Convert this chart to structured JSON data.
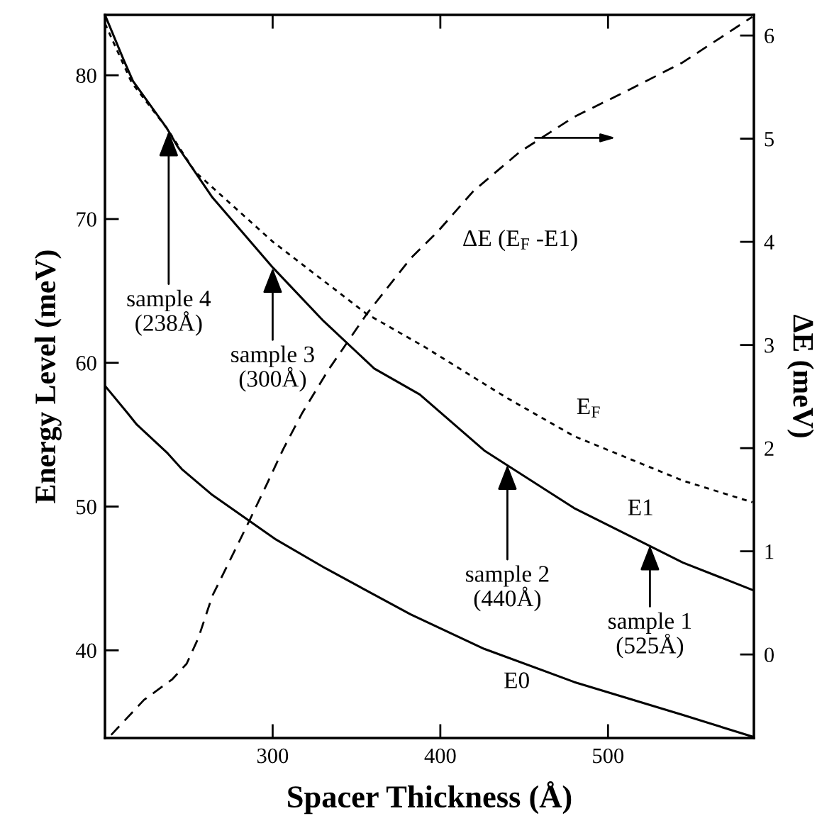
{
  "chart_data": {
    "type": "line",
    "xlabel": "Spacer Thickness (Å)",
    "ylabel": "Energy Level (meV)",
    "y2label": "ΔE (meV)",
    "xlim": [
      200,
      587
    ],
    "xticks": [
      300,
      400,
      500
    ],
    "ylim": [
      33.9,
      84.2
    ],
    "yticks": [
      40,
      50,
      60,
      70,
      80
    ],
    "y2lim": [
      -0.81,
      6.2
    ],
    "y2ticks": [
      0,
      1,
      2,
      3,
      4,
      5,
      6
    ],
    "grid": false,
    "legend": false,
    "marker": "none",
    "series": [
      {
        "name": "E1",
        "color": "#000000",
        "line_style": "solid",
        "x": [
          200,
          211.4,
          216.7,
          237.0,
          243.0,
          264.1,
          300.3,
          330.4,
          360.6,
          387.7,
          426.2,
          479.7,
          544.7,
          586.1
        ],
        "values": [
          84.2,
          81.0,
          79.6,
          76.3,
          75.1,
          71.5,
          66.6,
          62.9,
          59.6,
          57.8,
          53.9,
          49.9,
          46.1,
          44.2
        ]
      },
      {
        "name": "E$_{F}$",
        "color": "#000000",
        "line_style": "dotted",
        "x": [
          200,
          215.9,
          237.0,
          253.6,
          300.3,
          356.1,
          390.7,
          439.1,
          479.7,
          544.7,
          586.1
        ],
        "values": [
          83.6,
          79.5,
          76.3,
          73.3,
          68.4,
          63.4,
          61.1,
          57.6,
          54.9,
          51.8,
          50.3
        ]
      },
      {
        "name": "E0",
        "color": "#000000",
        "line_style": "solid",
        "x": [
          200,
          213.5,
          219.0,
          237.4,
          245.9,
          264.1,
          302.1,
          331.6,
          382.3,
          426.2,
          479.7,
          544.7,
          586.1
        ],
        "values": [
          58.4,
          56.5,
          55.7,
          53.7,
          52.6,
          50.8,
          47.7,
          45.7,
          42.5,
          40.1,
          37.8,
          35.5,
          34.0
        ]
      },
      {
        "name": "ΔE (E$_{F}$ -E1)",
        "color": "#000000",
        "line_style": "dashed",
        "axis": "y2",
        "x": [
          203.7,
          223.3,
          240.2,
          248.7,
          255.7,
          264.1,
          278.1,
          286.5,
          296.5,
          306.3,
          317.6,
          333.3,
          356.1,
          382.3,
          398.5,
          419.6,
          447.2,
          479.7,
          512.1,
          544.6,
          586.0
        ],
        "values": [
          -0.78,
          -0.44,
          -0.24,
          -0.09,
          0.16,
          0.57,
          1.03,
          1.31,
          1.65,
          1.99,
          2.34,
          2.76,
          3.3,
          3.84,
          4.1,
          4.49,
          4.87,
          5.21,
          5.47,
          5.74,
          6.18
        ]
      }
    ],
    "annotations": [
      {
        "text": "sample 4\n(238Å)",
        "x": 238,
        "y": 76.1
      },
      {
        "text": "sample 3\n(300Å)",
        "x": 300,
        "y": 66.6
      },
      {
        "text": "sample 2\n(440Å)",
        "x": 440,
        "y": 52.9
      },
      {
        "text": "sample 1\n(525Å)",
        "x": 525,
        "y": 47.3
      }
    ]
  }
}
